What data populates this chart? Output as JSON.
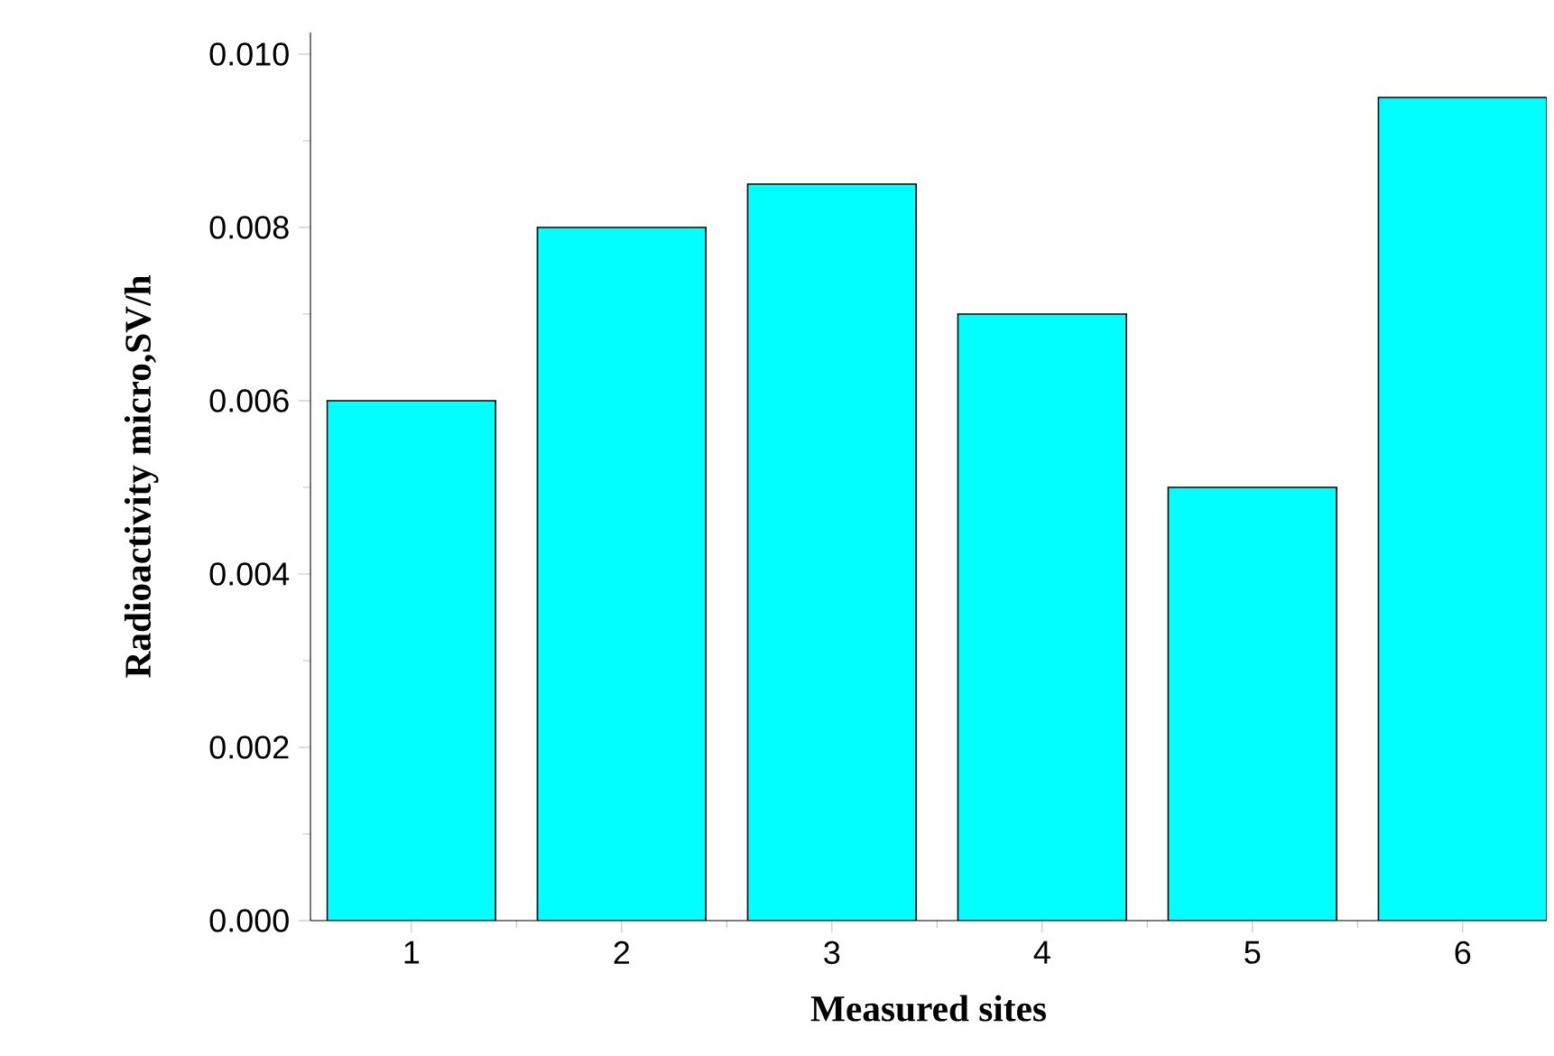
{
  "chart_data": {
    "type": "bar",
    "xlabel": "Measured sites",
    "ylabel": "Radioactivity  micro,SV/h",
    "categories": [
      "1",
      "2",
      "3",
      "4",
      "5",
      "6"
    ],
    "values": [
      0.006,
      0.008,
      0.0085,
      0.007,
      0.005,
      0.0095
    ],
    "color": "#00ffff",
    "ylim": [
      0,
      0.01025
    ],
    "yticks": [
      {
        "value": 0,
        "label": "0.000"
      },
      {
        "value": 0.002,
        "label": "0.002"
      },
      {
        "value": 0.004,
        "label": "0.004"
      },
      {
        "value": 0.006,
        "label": "0.006"
      },
      {
        "value": 0.008,
        "label": "0.008"
      },
      {
        "value": 0.01,
        "label": "0.010"
      }
    ],
    "grid": false
  }
}
